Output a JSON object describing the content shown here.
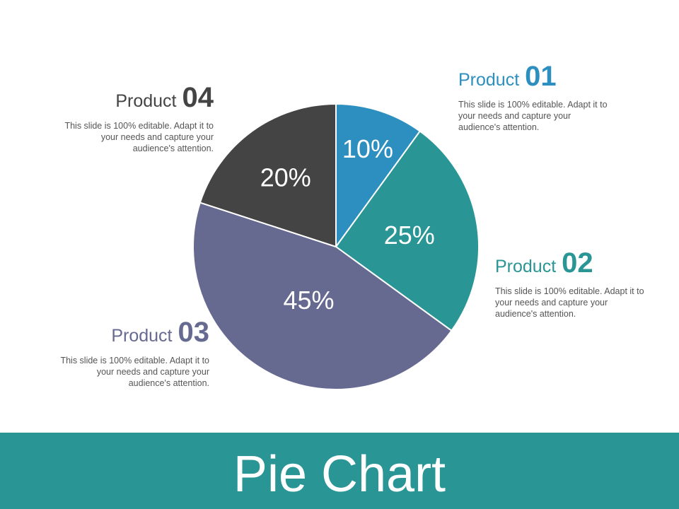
{
  "footer": {
    "title": "Pie Chart"
  },
  "chart_data": {
    "type": "pie",
    "slices": [
      {
        "key": "p1",
        "label": "Product 01",
        "value": 10,
        "value_label": "10%",
        "color": "#2d8fbf"
      },
      {
        "key": "p2",
        "label": "Product 02",
        "value": 25,
        "value_label": "25%",
        "color": "#2a9595"
      },
      {
        "key": "p3",
        "label": "Product 03",
        "value": 45,
        "value_label": "45%",
        "color": "#666a91"
      },
      {
        "key": "p4",
        "label": "Product 04",
        "value": 20,
        "value_label": "20%",
        "color": "#444444"
      }
    ]
  },
  "legend": [
    {
      "key": "p1",
      "word": "Product",
      "number": "01",
      "color": "#2d8fbf",
      "description": "This slide is 100% editable. Adapt it to your needs and capture your audience's attention."
    },
    {
      "key": "p2",
      "word": "Product",
      "number": "02",
      "color": "#2a9595",
      "description": "This slide is 100% editable. Adapt it to your needs and capture your audience's attention."
    },
    {
      "key": "p3",
      "word": "Product",
      "number": "03",
      "color": "#666a91",
      "description": "This slide is 100% editable. Adapt it to your needs and capture your audience's attention."
    },
    {
      "key": "p4",
      "word": "Product",
      "number": "04",
      "color": "#444444",
      "description": "This slide is 100% editable. Adapt it to your needs and capture your audience's attention."
    }
  ]
}
